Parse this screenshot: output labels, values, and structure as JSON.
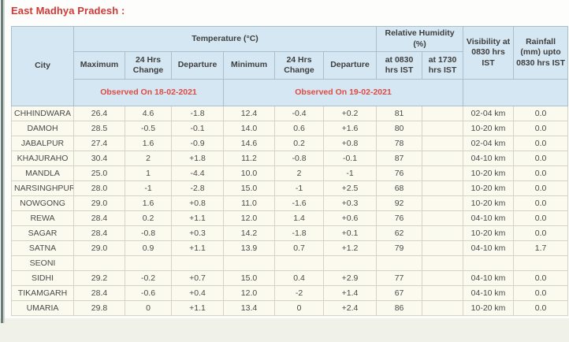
{
  "page": {
    "title": "East Madhya Pradesh :"
  },
  "colors": {
    "title_red": "#cf3a36",
    "observed_red": "#df4a44",
    "header_blue": "#d5e7f2",
    "body_cream": "#fbfaee"
  },
  "table": {
    "headers": {
      "city": "City",
      "temperature_group": "Temperature (°C)",
      "humidity_group": "Relative Humidity (%)",
      "visibility": "Visibility at 0830 hrs IST",
      "rainfall": "Rainfall (mm) upto 0830 hrs IST",
      "temp_sub": [
        "Maximum",
        "24 Hrs Change",
        "Departure",
        "Minimum",
        "24 Hrs Change",
        "Departure"
      ],
      "rh_sub": [
        "at 0830 hrs IST",
        "at 1730 hrs IST"
      ],
      "observed_left": "Observed On 18-02-2021",
      "observed_right": "Observed On 19-02-2021"
    },
    "rows": [
      {
        "city": "CHHINDWARA",
        "max": "26.4",
        "max_change": "4.6",
        "max_dep": "-1.8",
        "min": "12.4",
        "min_change": "-0.4",
        "min_dep": "+0.2",
        "rh_0830": "81",
        "rh_1730": "",
        "visibility": "02-04 km",
        "rainfall": "0.0"
      },
      {
        "city": "DAMOH",
        "max": "28.5",
        "max_change": "-0.5",
        "max_dep": "-0.1",
        "min": "14.0",
        "min_change": "0.6",
        "min_dep": "+1.6",
        "rh_0830": "80",
        "rh_1730": "",
        "visibility": "10-20 km",
        "rainfall": "0.0"
      },
      {
        "city": "JABALPUR",
        "max": "27.4",
        "max_change": "1.6",
        "max_dep": "-0.9",
        "min": "14.6",
        "min_change": "0.2",
        "min_dep": "+0.8",
        "rh_0830": "78",
        "rh_1730": "",
        "visibility": "02-04 km",
        "rainfall": "0.0"
      },
      {
        "city": "KHAJURAHO",
        "max": "30.4",
        "max_change": "2",
        "max_dep": "+1.8",
        "min": "11.2",
        "min_change": "-0.8",
        "min_dep": "-0.1",
        "rh_0830": "87",
        "rh_1730": "",
        "visibility": "04-10 km",
        "rainfall": "0.0"
      },
      {
        "city": "MANDLA",
        "max": "25.0",
        "max_change": "1",
        "max_dep": "-4.4",
        "min": "10.0",
        "min_change": "2",
        "min_dep": "-1",
        "rh_0830": "76",
        "rh_1730": "",
        "visibility": "10-20 km",
        "rainfall": "0.0"
      },
      {
        "city": "NARSINGHPUR",
        "max": "28.0",
        "max_change": "-1",
        "max_dep": "-2.8",
        "min": "15.0",
        "min_change": "-1",
        "min_dep": "+2.5",
        "rh_0830": "68",
        "rh_1730": "",
        "visibility": "10-20 km",
        "rainfall": "0.0"
      },
      {
        "city": "NOWGONG",
        "max": "29.0",
        "max_change": "1.6",
        "max_dep": "+0.8",
        "min": "11.0",
        "min_change": "-1.6",
        "min_dep": "+0.3",
        "rh_0830": "92",
        "rh_1730": "",
        "visibility": "10-20 km",
        "rainfall": "0.0"
      },
      {
        "city": "REWA",
        "max": "28.4",
        "max_change": "0.2",
        "max_dep": "+1.1",
        "min": "12.0",
        "min_change": "1.4",
        "min_dep": "+0.6",
        "rh_0830": "76",
        "rh_1730": "",
        "visibility": "04-10 km",
        "rainfall": "0.0"
      },
      {
        "city": "SAGAR",
        "max": "28.4",
        "max_change": "-0.8",
        "max_dep": "+0.3",
        "min": "14.2",
        "min_change": "-1.8",
        "min_dep": "+0.1",
        "rh_0830": "62",
        "rh_1730": "",
        "visibility": "10-20 km",
        "rainfall": "0.0"
      },
      {
        "city": "SATNA",
        "max": "29.0",
        "max_change": "0.9",
        "max_dep": "+1.1",
        "min": "13.9",
        "min_change": "0.7",
        "min_dep": "+1.2",
        "rh_0830": "79",
        "rh_1730": "",
        "visibility": "04-10 km",
        "rainfall": "1.7"
      },
      {
        "city": "SEONI",
        "max": "",
        "max_change": "",
        "max_dep": "",
        "min": "",
        "min_change": "",
        "min_dep": "",
        "rh_0830": "",
        "rh_1730": "",
        "visibility": "",
        "rainfall": ""
      },
      {
        "city": "SIDHI",
        "max": "29.2",
        "max_change": "-0.2",
        "max_dep": "+0.7",
        "min": "15.0",
        "min_change": "0.4",
        "min_dep": "+2.9",
        "rh_0830": "77",
        "rh_1730": "",
        "visibility": "04-10 km",
        "rainfall": "0.0"
      },
      {
        "city": "TIKAMGARH",
        "max": "28.4",
        "max_change": "-0.6",
        "max_dep": "+0.4",
        "min": "12.0",
        "min_change": "-2",
        "min_dep": "+1.4",
        "rh_0830": "67",
        "rh_1730": "",
        "visibility": "04-10 km",
        "rainfall": "0.0"
      },
      {
        "city": "UMARIA",
        "max": "29.8",
        "max_change": "0",
        "max_dep": "+1.1",
        "min": "13.4",
        "min_change": "0",
        "min_dep": "+2.4",
        "rh_0830": "86",
        "rh_1730": "",
        "visibility": "10-20 km",
        "rainfall": "0.0"
      }
    ]
  }
}
